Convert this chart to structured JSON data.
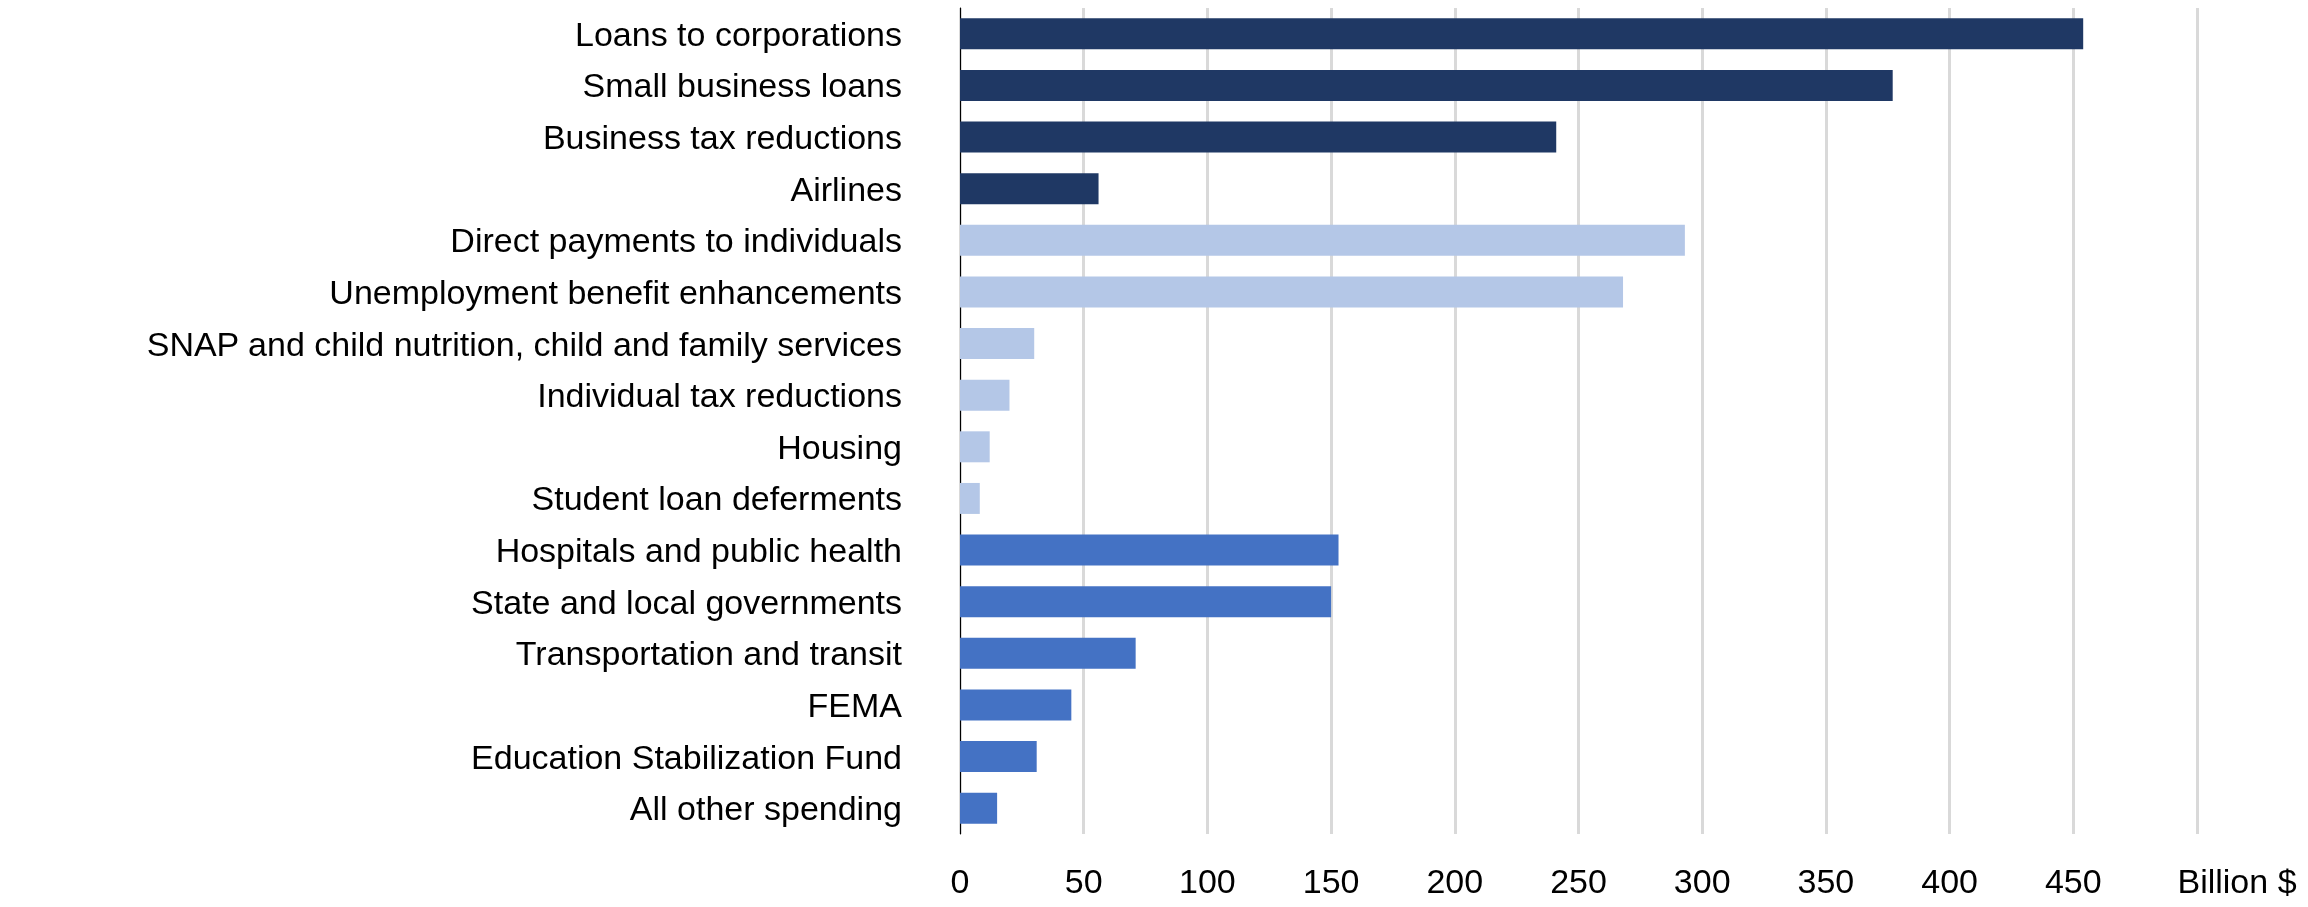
{
  "chart_data": {
    "type": "bar",
    "orientation": "horizontal",
    "xlabel": "Billion $",
    "categories": [
      "Loans to corporations",
      "Small business loans",
      "Business tax reductions",
      "Airlines",
      "Direct payments to individuals",
      "Unemployment benefit enhancements",
      "SNAP and child nutrition, child and family services",
      "Individual tax reductions",
      "Housing",
      "Student loan deferments",
      "Hospitals and public health",
      "State and local governments",
      "Transportation and transit",
      "FEMA",
      "Education Stabilization Fund",
      "All other spending"
    ],
    "values": [
      454,
      377,
      241,
      56,
      293,
      268,
      30,
      20,
      12,
      8,
      153,
      150,
      71,
      45,
      31,
      15
    ],
    "colors": [
      "#1f3864",
      "#1f3864",
      "#1f3864",
      "#1f3864",
      "#b4c7e7",
      "#b4c7e7",
      "#b4c7e7",
      "#b4c7e7",
      "#b4c7e7",
      "#b4c7e7",
      "#4472c4",
      "#4472c4",
      "#4472c4",
      "#4472c4",
      "#4472c4",
      "#4472c4"
    ],
    "xlim": [
      0,
      500
    ],
    "xticks": [
      0,
      50,
      100,
      150,
      200,
      250,
      300,
      350,
      400,
      450,
      {
        "value": 500,
        "label": null
      }
    ],
    "grid": "x"
  }
}
